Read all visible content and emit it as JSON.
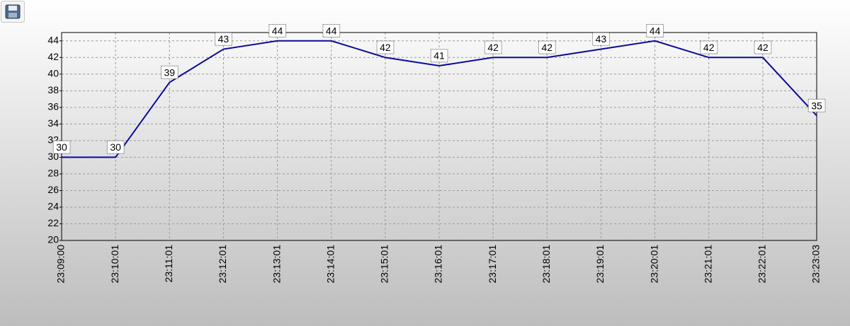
{
  "chart_data": {
    "type": "line",
    "categories": [
      "23:09:00",
      "23:10:01",
      "23:11:01",
      "23:12:01",
      "23:13:01",
      "23:14:01",
      "23:15:01",
      "23:16:01",
      "23:17:01",
      "23:18:01",
      "23:19:01",
      "23:20:01",
      "23:21:01",
      "23:22:01",
      "23:23:03"
    ],
    "values": [
      30,
      30,
      39,
      43,
      44,
      44,
      42,
      41,
      42,
      42,
      43,
      44,
      42,
      42,
      35
    ],
    "color": "#0a0a9c",
    "ylim": [
      20,
      45
    ],
    "yticks": [
      20,
      22,
      24,
      26,
      28,
      30,
      32,
      34,
      36,
      38,
      40,
      42,
      44
    ],
    "grid": true,
    "data_labels": true
  }
}
